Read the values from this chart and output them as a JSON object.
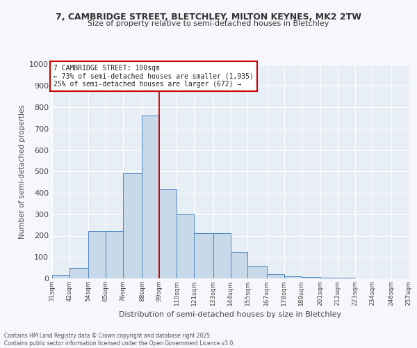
{
  "title1": "7, CAMBRIDGE STREET, BLETCHLEY, MILTON KEYNES, MK2 2TW",
  "title2": "Size of property relative to semi-detached houses in Bletchley",
  "xlabel": "Distribution of semi-detached houses by size in Bletchley",
  "ylabel": "Number of semi-detached properties",
  "annotation_line1": "7 CAMBRIDGE STREET: 100sqm",
  "annotation_line2": "← 73% of semi-detached houses are smaller (1,935)",
  "annotation_line3": "25% of semi-detached houses are larger (672) →",
  "bins": [
    31,
    42,
    54,
    65,
    76,
    88,
    99,
    110,
    121,
    133,
    144,
    155,
    167,
    178,
    189,
    201,
    212,
    223,
    234,
    246,
    257
  ],
  "bin_labels": [
    "31sqm",
    "42sqm",
    "54sqm",
    "65sqm",
    "76sqm",
    "88sqm",
    "99sqm",
    "110sqm",
    "121sqm",
    "133sqm",
    "144sqm",
    "155sqm",
    "167sqm",
    "178sqm",
    "189sqm",
    "201sqm",
    "212sqm",
    "223sqm",
    "234sqm",
    "246sqm",
    "257sqm"
  ],
  "counts": [
    15,
    50,
    220,
    220,
    490,
    760,
    415,
    300,
    210,
    210,
    125,
    60,
    20,
    10,
    5,
    3,
    2,
    1,
    1,
    1
  ],
  "bar_color": "#c8d9ea",
  "bar_edge_color": "#4f86c0",
  "vline_color": "#cc0000",
  "ylim": [
    0,
    1000
  ],
  "yticks": [
    0,
    100,
    200,
    300,
    400,
    500,
    600,
    700,
    800,
    900,
    1000
  ],
  "bg_color": "#e8eef5",
  "grid_color": "#ffffff",
  "fig_bg_color": "#f5f7fa",
  "footer1": "Contains HM Land Registry data © Crown copyright and database right 2025.",
  "footer2": "Contains public sector information licensed under the Open Government Licence v3.0."
}
